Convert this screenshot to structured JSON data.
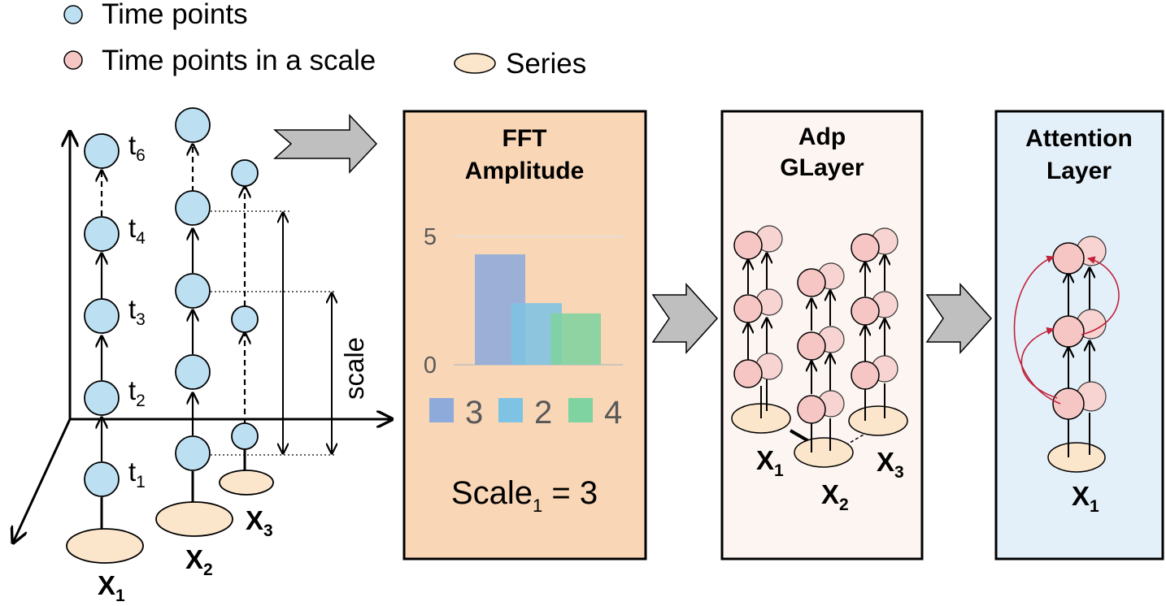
{
  "legend": {
    "time_points": "Time points",
    "time_points_in_scale": "Time points in a scale",
    "series": "Series"
  },
  "left": {
    "t_labels": [
      {
        "base": "t",
        "sub": "6"
      },
      {
        "base": "t",
        "sub": "4"
      },
      {
        "base": "t",
        "sub": "3"
      },
      {
        "base": "t",
        "sub": "2"
      },
      {
        "base": "t",
        "sub": "1"
      }
    ],
    "series_labels": [
      {
        "base": "X",
        "sub": "1"
      },
      {
        "base": "X",
        "sub": "2"
      },
      {
        "base": "X",
        "sub": "3"
      }
    ],
    "scale_label": "scale"
  },
  "fft_panel": {
    "title_line1": "FFT",
    "title_line2": "Amplitude",
    "scale_text": {
      "base": "Scale",
      "sub": "1",
      "rest": " = 3"
    }
  },
  "adp_panel": {
    "title_line1": "Adp",
    "title_line2": "GLayer",
    "series_labels": [
      {
        "base": "X",
        "sub": "1"
      },
      {
        "base": "X",
        "sub": "2"
      },
      {
        "base": "X",
        "sub": "3"
      }
    ]
  },
  "attention_panel": {
    "title_line1": "Attention",
    "title_line2": "Layer",
    "series_label": {
      "base": "X",
      "sub": "1"
    }
  },
  "colors": {
    "time_point_fill": "#bcdff2",
    "scale_point_fill": "#f6c6c4",
    "series_fill": "#fbe6cc",
    "fft_panel_bg": "#f9d6b6",
    "adp_panel_bg": "#fdf5f1",
    "attention_panel_bg": "#e4f0f9",
    "arrow_gray": "#bfbfbf",
    "attention_arrow": "#c0223b"
  },
  "chart_data": {
    "type": "bar",
    "categories": [
      "3",
      "2",
      "4"
    ],
    "values": [
      4.3,
      2.4,
      2.0
    ],
    "ylim": [
      0,
      5
    ],
    "yticks": [
      "0",
      "5"
    ],
    "colors": [
      "#8eaadb",
      "#7ec3e4",
      "#7fd3a1"
    ],
    "legend": [
      "3",
      "2",
      "4"
    ],
    "legend_position": "bottom",
    "grid": true
  }
}
